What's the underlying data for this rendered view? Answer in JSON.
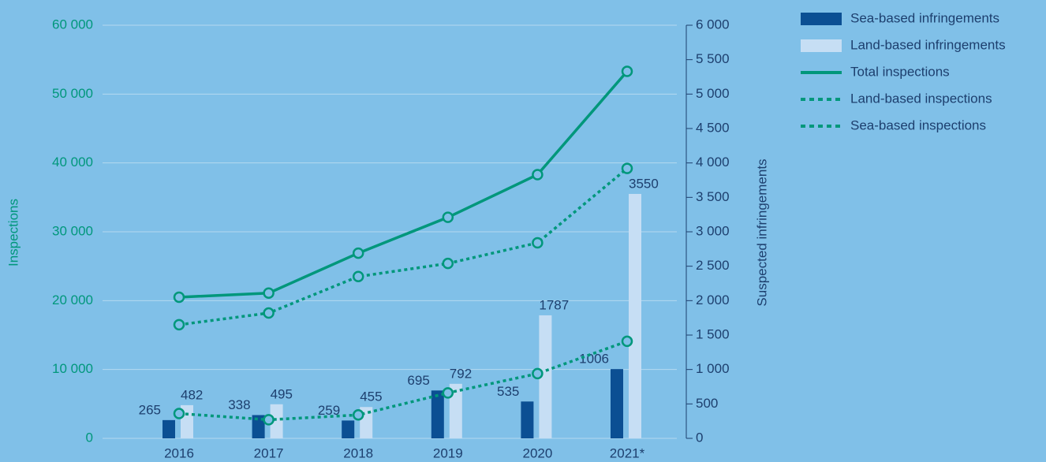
{
  "chart_data": {
    "type": "bar",
    "categories": [
      "2016",
      "2017",
      "2018",
      "2019",
      "2020",
      "2021*"
    ],
    "ylabel": "Inspections",
    "y2label": "Suspected infringements",
    "ylim": [
      0,
      60000
    ],
    "yticks": [
      0,
      {
        "value": 10000,
        "label": "10 000"
      },
      {
        "value": 20000,
        "label": "20 000"
      },
      {
        "value": 30000,
        "label": "30 000"
      },
      {
        "value": 40000,
        "label": "40 000"
      },
      {
        "value": 50000,
        "label": "50 000"
      },
      {
        "value": 60000,
        "label": "60 000"
      }
    ],
    "y2lim": [
      0,
      6000
    ],
    "y2ticks": [
      0,
      500,
      {
        "value": 1000,
        "label": "1 000"
      },
      {
        "value": 1500,
        "label": "1 500"
      },
      {
        "value": 2000,
        "label": "2 000"
      },
      {
        "value": 2500,
        "label": "2 500"
      },
      {
        "value": 3000,
        "label": "3 000"
      },
      {
        "value": 3500,
        "label": "3 500"
      },
      {
        "value": 4000,
        "label": "4 000"
      },
      {
        "value": 4500,
        "label": "4 500"
      },
      {
        "value": 5000,
        "label": "5 000"
      },
      {
        "value": 5500,
        "label": "5 500"
      },
      {
        "value": 6000,
        "label": "6 000"
      }
    ],
    "grid": true,
    "legend": "right",
    "series": [
      {
        "name": "Sea-based infringements",
        "type": "bar",
        "axis": "y2",
        "color": "#0b4f93",
        "values": [
          265,
          338,
          259,
          695,
          535,
          1006
        ]
      },
      {
        "name": "Land-based infringements",
        "type": "bar",
        "axis": "y2",
        "color": "#c6def4",
        "values": [
          482,
          495,
          455,
          792,
          1787,
          3550
        ]
      },
      {
        "name": "Total inspections",
        "type": "line",
        "dashed": false,
        "color": "#00977b",
        "values": [
          20500,
          21100,
          26900,
          32100,
          38300,
          53300
        ]
      },
      {
        "name": "Land-based inspections",
        "type": "line",
        "dashed": true,
        "color": "#00977b",
        "values": [
          16500,
          18200,
          23500,
          25400,
          28400,
          39200
        ]
      },
      {
        "name": "Sea-based inspections",
        "type": "line",
        "dashed": true,
        "color": "#00977b",
        "values": [
          3600,
          2700,
          3400,
          6600,
          9400,
          14100
        ]
      }
    ]
  }
}
